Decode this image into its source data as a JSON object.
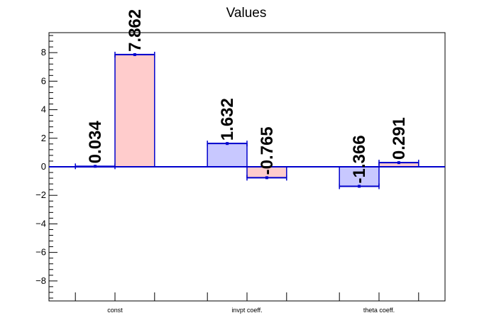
{
  "chart_data": {
    "type": "bar",
    "title": "Values",
    "categories": [
      "const",
      "invpt coeff.",
      "theta coeff."
    ],
    "series": [
      {
        "values": [
          0.034,
          1.632,
          -1.366
        ],
        "color": "#c8c8ff",
        "edge": "#0000cc"
      },
      {
        "values": [
          7.862,
          -0.765,
          0.291
        ],
        "color": "#ffcccc",
        "edge": "#0000cc"
      }
    ],
    "data_labels": [
      [
        "0.034",
        "1.632",
        "-1.366"
      ],
      [
        "7.862",
        "-0.765",
        "0.291"
      ]
    ],
    "ylim": [
      -9.4,
      9.4
    ],
    "yticks": [
      -8,
      -6,
      -4,
      -2,
      0,
      2,
      4,
      6,
      8
    ],
    "ytick_labels": [
      "−8",
      "−6",
      "−4",
      "−2",
      "0",
      "2",
      "4",
      "6",
      "8"
    ],
    "xlabel": "",
    "ylabel": "",
    "grid": false,
    "legend": "none"
  }
}
